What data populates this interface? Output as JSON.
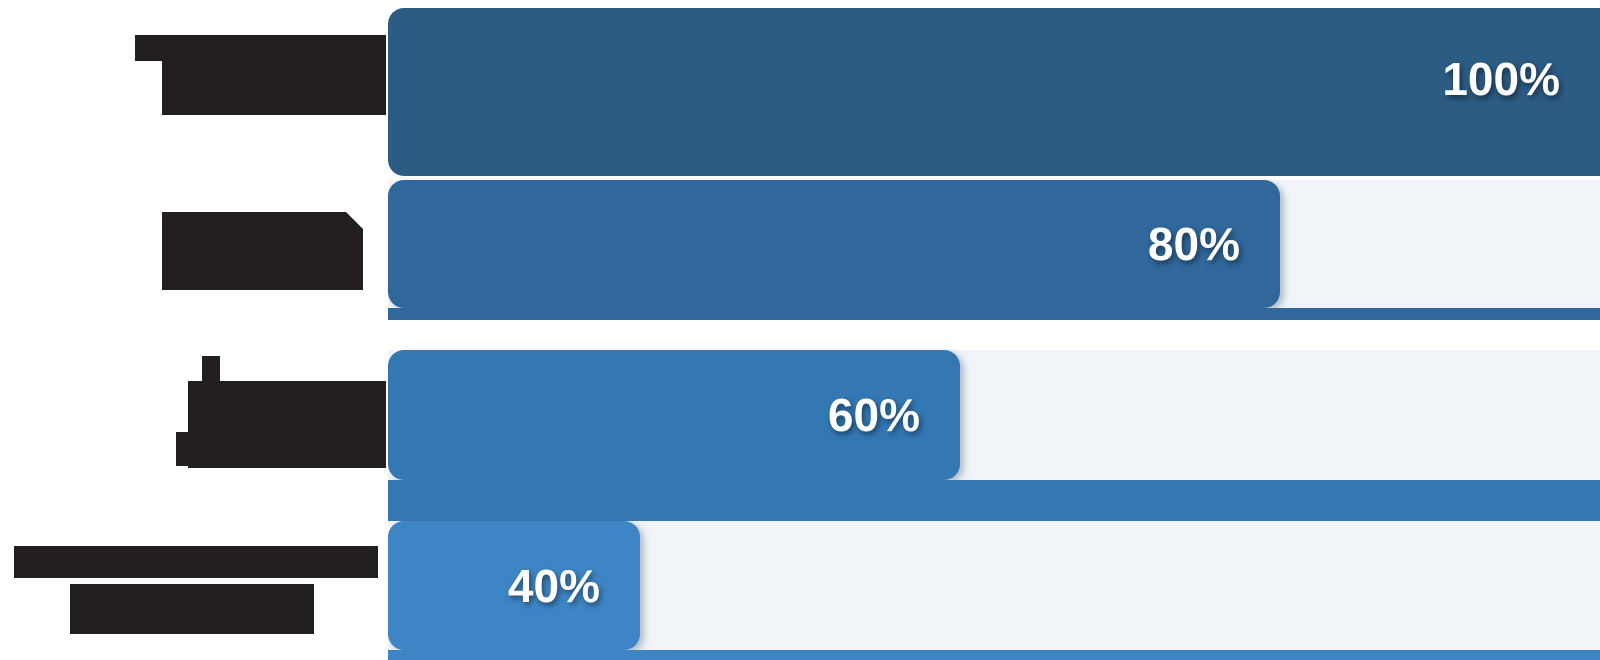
{
  "chart_data": {
    "type": "bar",
    "orientation": "horizontal",
    "title": "",
    "xlim": [
      0,
      100
    ],
    "grid": false,
    "legend": "none",
    "categories": [
      "",
      "",
      "",
      ""
    ],
    "note": "Row category labels are visible only as solid dark illegible (redacted-looking) blocks at the left of each bar; no readable text exists in the image.",
    "bars": [
      {
        "label": "100%",
        "value": 100,
        "color": "#2C5B84"
      },
      {
        "label": "80%",
        "value": 80,
        "color": "#30689C"
      },
      {
        "label": "60%",
        "value": 60,
        "color": "#3377B3"
      },
      {
        "label": "40%",
        "value": 40,
        "color": "#3E85C5"
      }
    ],
    "track_color": "#F1F5F9",
    "value_label_color": "#FFFFFF",
    "redaction_color": "#231F20",
    "background": "#FFFFFF"
  }
}
